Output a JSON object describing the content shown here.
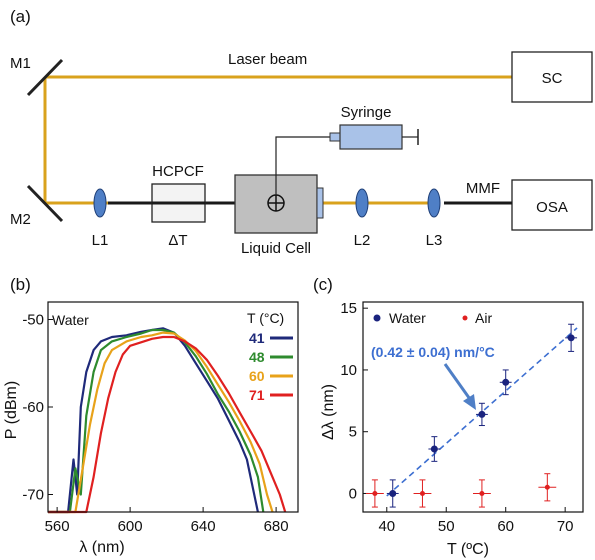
{
  "panel_a": {
    "label": "(a)",
    "mirrors": {
      "m1": "M1",
      "m2": "M2"
    },
    "beam_label": "Laser beam",
    "boxes": {
      "sc": "SC",
      "osa": "OSA",
      "syringe": "Syringe",
      "hcpcf": "HCPCF",
      "delta_t": "ΔT",
      "liquid_cell": "Liquid Cell",
      "mmf": "MMF"
    },
    "lenses": {
      "l1": "L1",
      "l2": "L2",
      "l3": "L3"
    },
    "colors": {
      "beam": "#d9a21c",
      "lens": "#4f7fc6",
      "fiber": "#1a1a1a",
      "cell": "#bfbfbf",
      "syringe": "#a9c2e8"
    }
  },
  "panel_b": {
    "label": "(b)",
    "medium_label": "Water",
    "legend_title": "T (°C)",
    "xlabel": "λ (nm)",
    "ylabel": "P (dBm)"
  },
  "panel_c": {
    "label": "(c)",
    "xlabel": "T (ºC)",
    "ylabel": "Δλ (nm)",
    "annotation": "(0.42 ± 0.04) nm/°C",
    "legend": {
      "water": "Water",
      "air": "Air"
    }
  },
  "chart_data": [
    {
      "type": "line",
      "xlim": [
        555,
        692
      ],
      "ylim": [
        -72,
        -48
      ],
      "xticks": [
        560,
        600,
        640,
        680
      ],
      "yticks": [
        -50,
        -60,
        -70
      ],
      "grid": false,
      "legend_placement": "top-right",
      "series": [
        {
          "name": "41",
          "color": "#1f2a7a",
          "points": [
            [
              555,
              -72
            ],
            [
              566,
              -72
            ],
            [
              569,
              -66
            ],
            [
              571,
              -70
            ],
            [
              573,
              -60
            ],
            [
              576,
              -56
            ],
            [
              580,
              -53.5
            ],
            [
              584,
              -52.5
            ],
            [
              590,
              -52
            ],
            [
              598,
              -51.8
            ],
            [
              606,
              -51.4
            ],
            [
              612,
              -51.2
            ],
            [
              618,
              -51
            ],
            [
              624,
              -51.5
            ],
            [
              630,
              -53
            ],
            [
              636,
              -55
            ],
            [
              642,
              -57
            ],
            [
              648,
              -59
            ],
            [
              654,
              -61.5
            ],
            [
              660,
              -64
            ],
            [
              664,
              -66
            ],
            [
              667,
              -69
            ],
            [
              670,
              -72
            ]
          ]
        },
        {
          "name": "48",
          "color": "#2e8b2e",
          "points": [
            [
              555,
              -72
            ],
            [
              567,
              -72
            ],
            [
              570,
              -67
            ],
            [
              573,
              -70
            ],
            [
              576,
              -61
            ],
            [
              580,
              -56
            ],
            [
              584,
              -53.5
            ],
            [
              590,
              -52.5
            ],
            [
              598,
              -52
            ],
            [
              606,
              -51.6
            ],
            [
              612,
              -51.2
            ],
            [
              618,
              -51.2
            ],
            [
              624,
              -51.5
            ],
            [
              630,
              -52.6
            ],
            [
              636,
              -54.2
            ],
            [
              642,
              -56.2
            ],
            [
              648,
              -58.5
            ],
            [
              654,
              -60.5
            ],
            [
              660,
              -62.8
            ],
            [
              666,
              -65.5
            ],
            [
              670,
              -68
            ],
            [
              673,
              -72
            ]
          ]
        },
        {
          "name": "60",
          "color": "#e8a21a",
          "points": [
            [
              555,
              -72
            ],
            [
              570,
              -72
            ],
            [
              574,
              -67
            ],
            [
              578,
              -62
            ],
            [
              582,
              -58
            ],
            [
              586,
              -55
            ],
            [
              590,
              -53.5
            ],
            [
              598,
              -52.5
            ],
            [
              606,
              -52
            ],
            [
              612,
              -51.8
            ],
            [
              618,
              -51.5
            ],
            [
              624,
              -51.6
            ],
            [
              630,
              -52.4
            ],
            [
              636,
              -53.6
            ],
            [
              642,
              -55.4
            ],
            [
              648,
              -57.4
            ],
            [
              654,
              -59.4
            ],
            [
              660,
              -61.6
            ],
            [
              666,
              -64
            ],
            [
              671,
              -66.5
            ],
            [
              675,
              -70
            ],
            [
              678,
              -72
            ]
          ]
        },
        {
          "name": "71",
          "color": "#e02020",
          "points": [
            [
              555,
              -72
            ],
            [
              576,
              -72
            ],
            [
              580,
              -68
            ],
            [
              584,
              -63
            ],
            [
              588,
              -59
            ],
            [
              592,
              -56
            ],
            [
              596,
              -54
            ],
            [
              600,
              -53
            ],
            [
              606,
              -52.6
            ],
            [
              612,
              -52.2
            ],
            [
              618,
              -52
            ],
            [
              624,
              -52
            ],
            [
              630,
              -52.5
            ],
            [
              636,
              -53.3
            ],
            [
              642,
              -54.6
            ],
            [
              648,
              -56.4
            ],
            [
              654,
              -58.4
            ],
            [
              660,
              -60.6
            ],
            [
              666,
              -62.8
            ],
            [
              672,
              -65
            ],
            [
              677,
              -67.5
            ],
            [
              682,
              -70
            ],
            [
              685,
              -72
            ]
          ]
        }
      ]
    },
    {
      "type": "scatter",
      "xlim": [
        36,
        73
      ],
      "ylim": [
        -1.5,
        15.5
      ],
      "xticks": [
        40,
        50,
        60,
        70
      ],
      "yticks": [
        0,
        5,
        10,
        15
      ],
      "grid": false,
      "legend_placement": "top",
      "series": [
        {
          "name": "Water",
          "color": "#1a237e",
          "points": [
            [
              41,
              0
            ],
            [
              48,
              3.6
            ],
            [
              56,
              6.4
            ],
            [
              60,
              9
            ],
            [
              71,
              12.6
            ]
          ],
          "yerr": [
            1.1,
            1.0,
            0.9,
            1.0,
            1.1
          ],
          "xerr": [
            1,
            1,
            1,
            1,
            1
          ]
        },
        {
          "name": "Air",
          "color": "#e02020",
          "points": [
            [
              38,
              0
            ],
            [
              46,
              0
            ],
            [
              56,
              0
            ],
            [
              67,
              0.5
            ]
          ],
          "yerr": [
            1.1,
            1.1,
            1.1,
            1.1
          ],
          "xerr": [
            1.5,
            1.5,
            1.5,
            1.5
          ]
        }
      ],
      "fit": {
        "x": [
          40,
          72
        ],
        "y": [
          -0.2,
          13.4
        ],
        "color": "#3d6fd1"
      }
    }
  ]
}
